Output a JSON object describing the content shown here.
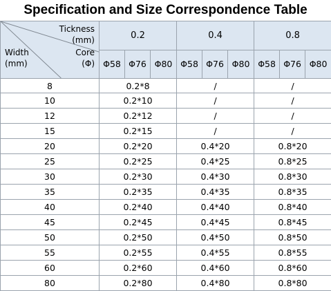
{
  "title": "Specification and Size Correspondence Table",
  "corner": {
    "thickness_label": "Tickness",
    "thickness_unit": "(mm)",
    "core_label": "Core",
    "core_unit": "(Φ)",
    "width_label": "Width",
    "width_unit": "(mm)"
  },
  "thicknesses": [
    "0.2",
    "0.4",
    "0.8"
  ],
  "cores": [
    "Φ58",
    "Φ76",
    "Φ80",
    "Φ58",
    "Φ76",
    "Φ80",
    "Φ58",
    "Φ76",
    "Φ80"
  ],
  "rows": [
    {
      "width": "8",
      "v02": "0.2*8",
      "v04": "/",
      "v08": "/"
    },
    {
      "width": "10",
      "v02": "0.2*10",
      "v04": "/",
      "v08": "/"
    },
    {
      "width": "12",
      "v02": "0.2*12",
      "v04": "/",
      "v08": "/"
    },
    {
      "width": "15",
      "v02": "0.2*15",
      "v04": "/",
      "v08": "/"
    },
    {
      "width": "20",
      "v02": "0.2*20",
      "v04": "0.4*20",
      "v08": "0.8*20"
    },
    {
      "width": "25",
      "v02": "0.2*25",
      "v04": "0.4*25",
      "v08": "0.8*25"
    },
    {
      "width": "30",
      "v02": "0.2*30",
      "v04": "0.4*30",
      "v08": "0.8*30"
    },
    {
      "width": "35",
      "v02": "0.2*35",
      "v04": "0.4*35",
      "v08": "0.8*35"
    },
    {
      "width": "40",
      "v02": "0.2*40",
      "v04": "0.4*40",
      "v08": "0.8*40"
    },
    {
      "width": "45",
      "v02": "0.2*45",
      "v04": "0.4*45",
      "v08": "0.8*45"
    },
    {
      "width": "50",
      "v02": "0.2*50",
      "v04": "0.4*50",
      "v08": "0.8*50"
    },
    {
      "width": "55",
      "v02": "0.2*55",
      "v04": "0.4*55",
      "v08": "0.8*55"
    },
    {
      "width": "60",
      "v02": "0.2*60",
      "v04": "0.4*60",
      "v08": "0.8*60"
    },
    {
      "width": "80",
      "v02": "0.2*80",
      "v04": "0.4*80",
      "v08": "0.8*80"
    }
  ]
}
